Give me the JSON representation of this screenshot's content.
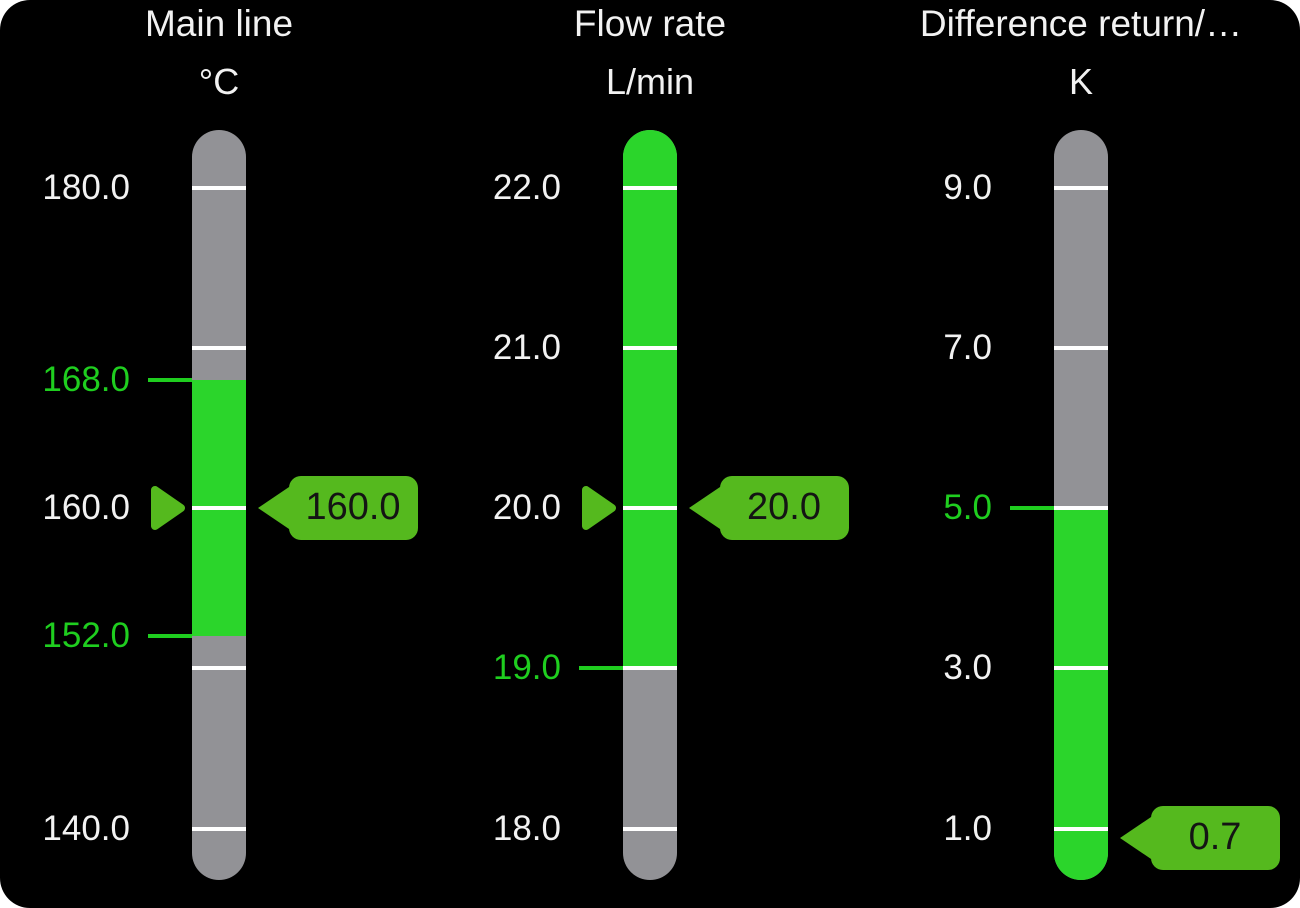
{
  "colors": {
    "page_bg": "#ffffff",
    "panel_bg": "#000000",
    "bar_gray": "#929296",
    "bar_green": "#2bd52b",
    "tag_green": "#55b91e",
    "label_white": "#f2f2f2",
    "label_green": "#1fce1f",
    "tick_white": "#ffffff",
    "value_text": "#141414"
  },
  "gauges": [
    {
      "title": "Main line",
      "unit": "°C",
      "ticks": [
        {
          "v": 180,
          "label": "180.0"
        },
        {
          "v": 170,
          "label": ""
        },
        {
          "v": 160,
          "label": "160.0"
        },
        {
          "v": 150,
          "label": ""
        },
        {
          "v": 140,
          "label": "140.0"
        }
      ],
      "limits": [
        {
          "v": 168,
          "label": "168.0"
        },
        {
          "v": 152,
          "label": "152.0"
        }
      ],
      "green_zone": {
        "low": 152,
        "high": 168
      },
      "setpoint": {
        "v": 160
      },
      "value": {
        "v": 160,
        "label": "160.0"
      }
    },
    {
      "title": "Flow rate",
      "unit": "L/min",
      "ticks": [
        {
          "v": 22,
          "label": "22.0"
        },
        {
          "v": 21,
          "label": "21.0"
        },
        {
          "v": 20,
          "label": "20.0"
        },
        {
          "v": 19,
          "label": ""
        },
        {
          "v": 18,
          "label": "18.0"
        }
      ],
      "limits": [
        {
          "v": 19,
          "label": "19.0"
        }
      ],
      "green_zone": {
        "low": 19,
        "high": null
      },
      "setpoint": {
        "v": 20
      },
      "value": {
        "v": 20,
        "label": "20.0"
      }
    },
    {
      "title": "Difference return/…",
      "unit": "K",
      "ticks": [
        {
          "v": 9,
          "label": "9.0"
        },
        {
          "v": 7,
          "label": "7.0"
        },
        {
          "v": 5,
          "label": ""
        },
        {
          "v": 3,
          "label": "3.0"
        },
        {
          "v": 1,
          "label": "1.0"
        }
      ],
      "limits": [
        {
          "v": 5,
          "label": "5.0"
        }
      ],
      "green_zone": {
        "low": null,
        "high": 5
      },
      "setpoint": null,
      "value": {
        "v": 0.7,
        "label": "0.7"
      }
    }
  ]
}
